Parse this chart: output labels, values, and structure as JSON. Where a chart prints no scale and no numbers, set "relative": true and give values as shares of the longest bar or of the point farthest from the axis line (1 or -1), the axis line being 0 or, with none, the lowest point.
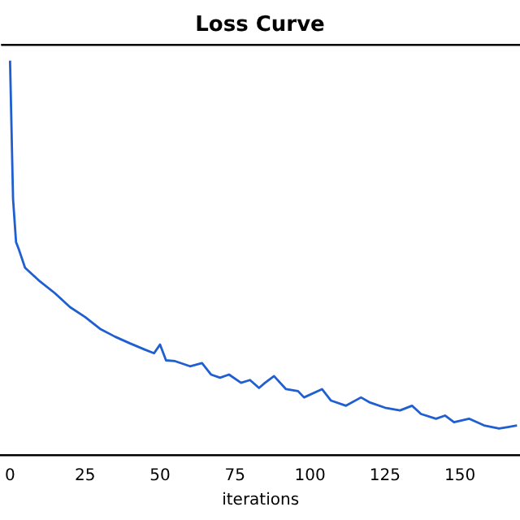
{
  "chart_data": {
    "type": "line",
    "title": "Loss Curve",
    "xlabel": "iterations",
    "relative": true,
    "xlim": [
      -3,
      170
    ],
    "xticks": [
      0,
      25,
      50,
      75,
      100,
      125,
      150
    ],
    "grid": false,
    "legend": false,
    "marker": "none",
    "line_style": "solid",
    "series": [
      {
        "color": "#1f5fd0",
        "x": [
          0,
          1,
          2,
          3,
          5,
          10,
          15,
          20,
          25,
          30,
          35,
          40,
          45,
          48,
          50,
          52,
          55,
          60,
          64,
          67,
          70,
          73,
          77,
          80,
          83,
          85,
          88,
          92,
          96,
          98,
          104,
          107,
          112,
          117,
          120,
          125,
          130,
          134,
          137,
          142,
          145,
          148,
          153,
          158,
          163,
          166,
          169
        ],
        "values": [
          1.0,
          0.65,
          0.54,
          0.52,
          0.475,
          0.44,
          0.41,
          0.375,
          0.35,
          0.32,
          0.3,
          0.283,
          0.267,
          0.258,
          0.28,
          0.24,
          0.238,
          0.225,
          0.233,
          0.204,
          0.196,
          0.204,
          0.183,
          0.19,
          0.17,
          0.183,
          0.2,
          0.167,
          0.162,
          0.146,
          0.167,
          0.138,
          0.125,
          0.146,
          0.133,
          0.12,
          0.113,
          0.125,
          0.104,
          0.092,
          0.1,
          0.083,
          0.092,
          0.075,
          0.067,
          0.071,
          0.075
        ]
      }
    ]
  }
}
